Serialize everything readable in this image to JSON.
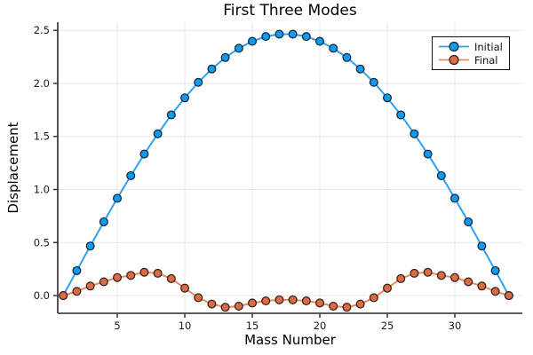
{
  "figure": {
    "title": "First Three Modes",
    "xlabel": "Mass Number",
    "ylabel": "Displacement"
  },
  "chart_data": {
    "type": "line",
    "title": "First Three Modes",
    "xlabel": "Mass Number",
    "ylabel": "Displacement",
    "grid": true,
    "legend_position": "top-right",
    "background": "#ffffff",
    "xlim": [
      0.59,
      35.0
    ],
    "ylim": [
      -0.167,
      2.577
    ],
    "xticks": [
      "5",
      "10",
      "15",
      "20",
      "25",
      "30"
    ],
    "xtick_values": [
      5,
      10,
      15,
      20,
      25,
      30
    ],
    "yticks": [
      "0.0",
      "0.5",
      "1.0",
      "1.5",
      "2.0",
      "2.5"
    ],
    "ytick_values": [
      0,
      0.5,
      1.0,
      1.5,
      2.0,
      2.5
    ],
    "x": [
      1,
      2,
      3,
      4,
      5,
      6,
      7,
      8,
      9,
      10,
      11,
      12,
      13,
      14,
      15,
      16,
      17,
      18,
      19,
      20,
      21,
      22,
      23,
      24,
      25,
      26,
      27,
      28,
      29,
      30,
      31,
      32,
      33,
      34
    ],
    "series": [
      {
        "name": "Initial",
        "line_color": "#2ea1f3",
        "marker_color": "#0c9af3",
        "marker_edge_color": "#16222e",
        "values": [
          0.0,
          0.235,
          0.467,
          0.695,
          0.917,
          1.13,
          1.334,
          1.525,
          1.703,
          1.864,
          2.01,
          2.136,
          2.244,
          2.331,
          2.397,
          2.442,
          2.464,
          2.464,
          2.442,
          2.397,
          2.331,
          2.244,
          2.136,
          2.01,
          1.864,
          1.703,
          1.525,
          1.334,
          1.13,
          0.917,
          0.695,
          0.467,
          0.235,
          0.0
        ]
      },
      {
        "name": "Final",
        "line_color": "#e78a64",
        "marker_color": "#d96b45",
        "marker_edge_color": "#2e1b12",
        "values": [
          0.0,
          0.04,
          0.09,
          0.13,
          0.17,
          0.19,
          0.22,
          0.21,
          0.16,
          0.07,
          -0.02,
          -0.08,
          -0.11,
          -0.1,
          -0.07,
          -0.05,
          -0.04,
          -0.04,
          -0.05,
          -0.07,
          -0.1,
          -0.11,
          -0.08,
          -0.02,
          0.07,
          0.16,
          0.21,
          0.22,
          0.19,
          0.17,
          0.13,
          0.09,
          0.04,
          0.0
        ]
      }
    ],
    "style": {
      "grid_color": "#e7e7e7",
      "spine_color": "#2a2a2e",
      "tick_label_color": "#1a1a1a",
      "legend_border_color": "#111111"
    }
  }
}
